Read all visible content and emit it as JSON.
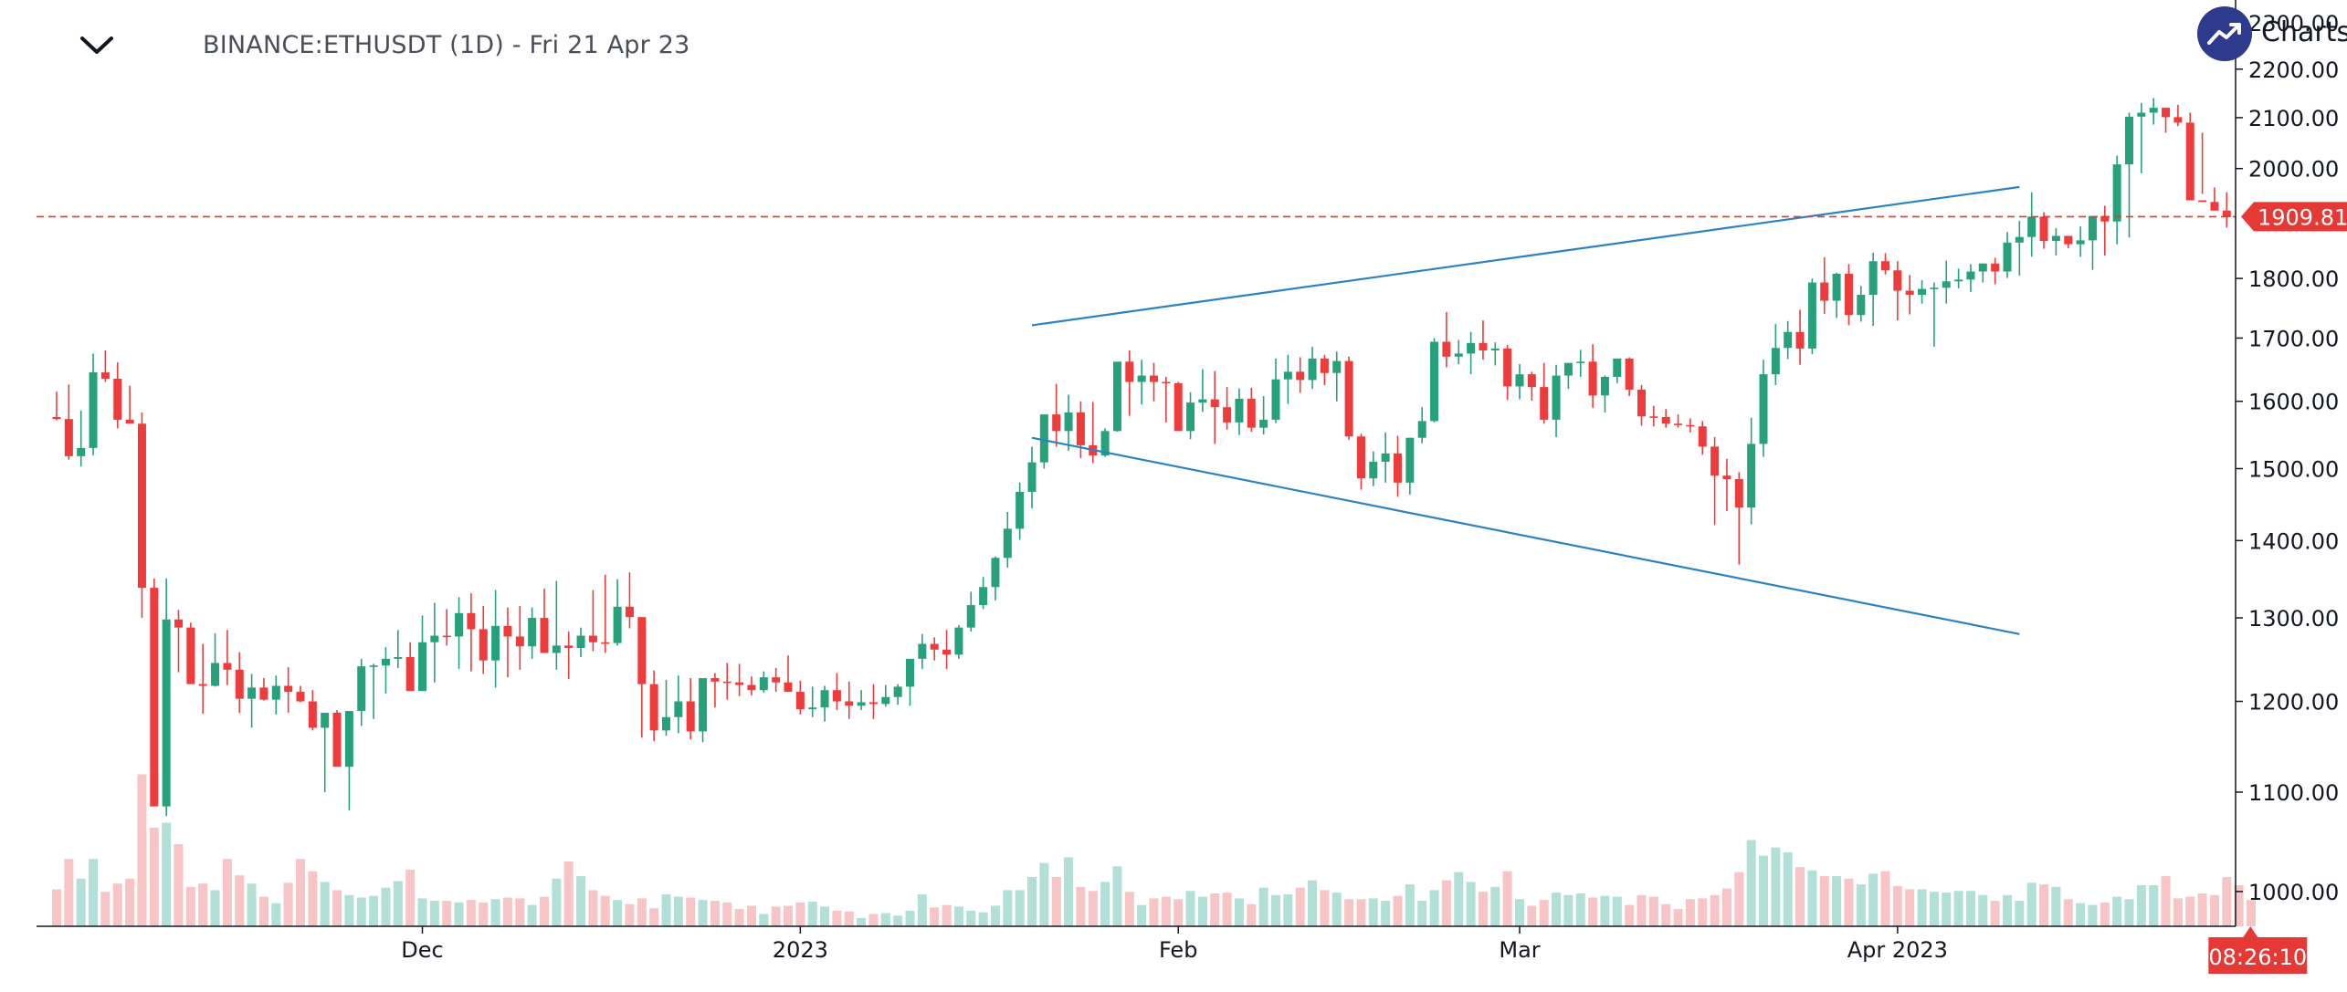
{
  "header": {
    "symbol": "BINANCE:ETHUSDT (1D) - Fri 21 Apr 23",
    "collapse_icon": "chevron-down-icon",
    "logo_text": "Charts p",
    "logo_icon": "trend-up-icon"
  },
  "chart_data": {
    "type": "candlestick",
    "title": "BINANCE:ETHUSDT (1D) - Fri 21 Apr 23",
    "x_tick_labels": [
      "Dec",
      "2023",
      "Feb",
      "Mar",
      "Apr 2023"
    ],
    "y_ticks": [
      1000,
      1100,
      1200,
      1300,
      1400,
      1500,
      1600,
      1700,
      1800,
      1900,
      2000,
      2100,
      2200,
      2300
    ],
    "y_tick_labels": [
      "1000.00",
      "1100.00",
      "1200.00",
      "1300.00",
      "1400.00",
      "1500.00",
      "1600.00",
      "1700.00",
      "1800.00",
      "2000.00",
      "2100.00",
      "2200.00",
      "2300.00"
    ],
    "y_scale": "log",
    "ylim": [
      980,
      2310
    ],
    "grid": false,
    "current_price": 1909.81,
    "current_price_label": "1909.81",
    "countdown_label": "08:26:10",
    "colors": {
      "up": "#26a17b",
      "down": "#ee3b3b",
      "up_volume": "#b2dfd6",
      "down_volume": "#f7c5c5",
      "trendline": "#2d82c0",
      "price_line": "#e53935"
    },
    "series": [
      {
        "kind": "ohlc",
        "start_date": "2022-11-01",
        "o": [
          1576,
          1573,
          1518,
          1530,
          1645,
          1635,
          1572,
          1566,
          1338,
          1085,
          1298,
          1288,
          1220,
          1218,
          1245,
          1237,
          1203,
          1216,
          1202,
          1218,
          1211,
          1200,
          1170,
          1187,
          1127,
          1189,
          1241,
          1242,
          1250,
          1252,
          1212,
          1270,
          1278,
          1277,
          1306,
          1286,
          1248,
          1290,
          1277,
          1265,
          1300,
          1257,
          1266,
          1263,
          1278,
          1270,
          1269,
          1314,
          1301,
          1220,
          1167,
          1182,
          1200,
          1166,
          1227,
          1223,
          1222,
          1219,
          1213,
          1228,
          1222,
          1211,
          1191,
          1193,
          1213,
          1200,
          1195,
          1199,
          1197,
          1205,
          1217,
          1250,
          1268,
          1261,
          1255,
          1288,
          1316,
          1339,
          1377,
          1416,
          1467,
          1509,
          1580,
          1555,
          1583,
          1534,
          1519,
          1555,
          1662,
          1630,
          1640,
          1630,
          1628,
          1555,
          1598,
          1603,
          1591,
          1568,
          1604,
          1560,
          1572,
          1634,
          1646,
          1633,
          1667,
          1644,
          1663,
          1547,
          1486,
          1510,
          1522,
          1480,
          1545,
          1570,
          1694,
          1670,
          1675,
          1692,
          1680,
          1683,
          1623,
          1642,
          1622,
          1572,
          1640,
          1660,
          1662,
          1609,
          1638,
          1667,
          1618,
          1577,
          1576,
          1566,
          1564,
          1562,
          1532,
          1490,
          1485,
          1445,
          1536,
          1642,
          1684,
          1710,
          1683,
          1793,
          1762,
          1808,
          1738,
          1772,
          1830,
          1814,
          1779,
          1772,
          1782,
          1784,
          1795,
          1798,
          1812,
          1826,
          1812,
          1863,
          1873,
          1910,
          1866,
          1875,
          1860,
          1867,
          1911,
          1901,
          2008,
          2102,
          2110,
          2120,
          2101,
          2090,
          1940,
          1937,
          1921
        ],
        "h": [
          1615,
          1626,
          1586,
          1675,
          1680,
          1661,
          1624,
          1583,
          1350,
          1350,
          1310,
          1294,
          1268,
          1281,
          1285,
          1258,
          1232,
          1227,
          1230,
          1240,
          1218,
          1213,
          1175,
          1190,
          1188,
          1250,
          1244,
          1264,
          1285,
          1270,
          1303,
          1319,
          1311,
          1326,
          1331,
          1315,
          1335,
          1313,
          1315,
          1313,
          1337,
          1347,
          1283,
          1288,
          1335,
          1355,
          1349,
          1358,
          1300,
          1236,
          1225,
          1230,
          1227,
          1212,
          1233,
          1245,
          1244,
          1229,
          1235,
          1239,
          1254,
          1224,
          1217,
          1218,
          1233,
          1223,
          1213,
          1220,
          1219,
          1220,
          1235,
          1280,
          1276,
          1285,
          1291,
          1333,
          1352,
          1379,
          1439,
          1480,
          1532,
          1546,
          1627,
          1610,
          1600,
          1599,
          1559,
          1653,
          1680,
          1665,
          1660,
          1638,
          1630,
          1614,
          1650,
          1647,
          1622,
          1620,
          1621,
          1608,
          1667,
          1673,
          1669,
          1686,
          1673,
          1678,
          1670,
          1551,
          1525,
          1553,
          1548,
          1545,
          1591,
          1700,
          1743,
          1697,
          1710,
          1729,
          1693,
          1689,
          1658,
          1646,
          1660,
          1657,
          1653,
          1681,
          1690,
          1640,
          1652,
          1669,
          1625,
          1593,
          1588,
          1580,
          1574,
          1570,
          1546,
          1514,
          1495,
          1575,
          1665,
          1723,
          1728,
          1747,
          1800,
          1837,
          1810,
          1825,
          1787,
          1845,
          1844,
          1830,
          1806,
          1797,
          1793,
          1831,
          1817,
          1825,
          1826,
          1836,
          1882,
          1902,
          1955,
          1918,
          1889,
          1873,
          1892,
          1910,
          1930,
          2025,
          2110,
          2130,
          2140,
          2120,
          2126,
          2110,
          1952,
          1964,
          1955
        ],
        "l": [
          1571,
          1513,
          1503,
          1519,
          1630,
          1559,
          1566,
          1300,
          1200,
          1075,
          1234,
          1255,
          1186,
          1217,
          1219,
          1187,
          1170,
          1201,
          1185,
          1187,
          1199,
          1167,
          1100,
          1128,
          1081,
          1172,
          1180,
          1209,
          1239,
          1214,
          1212,
          1222,
          1266,
          1238,
          1235,
          1232,
          1216,
          1228,
          1237,
          1250,
          1259,
          1237,
          1226,
          1252,
          1259,
          1257,
          1266,
          1287,
          1159,
          1155,
          1161,
          1164,
          1157,
          1154,
          1193,
          1202,
          1206,
          1207,
          1210,
          1211,
          1217,
          1185,
          1182,
          1177,
          1190,
          1180,
          1190,
          1180,
          1194,
          1196,
          1195,
          1238,
          1248,
          1238,
          1250,
          1283,
          1311,
          1322,
          1364,
          1401,
          1444,
          1500,
          1532,
          1526,
          1515,
          1508,
          1517,
          1554,
          1578,
          1595,
          1600,
          1568,
          1558,
          1543,
          1584,
          1536,
          1557,
          1549,
          1554,
          1550,
          1567,
          1596,
          1613,
          1619,
          1625,
          1600,
          1542,
          1470,
          1475,
          1480,
          1460,
          1463,
          1537,
          1568,
          1653,
          1658,
          1642,
          1665,
          1656,
          1602,
          1603,
          1601,
          1566,
          1546,
          1619,
          1638,
          1590,
          1583,
          1628,
          1608,
          1563,
          1562,
          1560,
          1560,
          1553,
          1520,
          1421,
          1440,
          1368,
          1422,
          1517,
          1625,
          1666,
          1657,
          1674,
          1740,
          1733,
          1721,
          1727,
          1720,
          1807,
          1729,
          1739,
          1757,
          1686,
          1757,
          1783,
          1777,
          1793,
          1790,
          1801,
          1805,
          1838,
          1852,
          1840,
          1853,
          1838,
          1815,
          1840,
          1860,
          1872,
          1991,
          2086,
          2070,
          2083,
          2060,
          2070,
          1921,
          1890,
          1890
        ],
        "c": [
          1573,
          1518,
          1530,
          1645,
          1635,
          1572,
          1566,
          1338,
          1085,
          1298,
          1288,
          1220,
          1218,
          1245,
          1237,
          1203,
          1216,
          1202,
          1218,
          1211,
          1200,
          1170,
          1187,
          1127,
          1189,
          1241,
          1242,
          1250,
          1252,
          1212,
          1270,
          1278,
          1277,
          1306,
          1286,
          1248,
          1290,
          1277,
          1265,
          1300,
          1257,
          1266,
          1263,
          1278,
          1270,
          1269,
          1314,
          1301,
          1220,
          1167,
          1182,
          1200,
          1166,
          1227,
          1223,
          1222,
          1219,
          1213,
          1228,
          1222,
          1211,
          1191,
          1193,
          1213,
          1200,
          1195,
          1199,
          1197,
          1205,
          1217,
          1250,
          1268,
          1261,
          1255,
          1288,
          1316,
          1339,
          1377,
          1416,
          1467,
          1509,
          1580,
          1555,
          1583,
          1534,
          1519,
          1555,
          1662,
          1630,
          1640,
          1630,
          1628,
          1555,
          1598,
          1603,
          1591,
          1568,
          1604,
          1560,
          1572,
          1634,
          1646,
          1633,
          1667,
          1644,
          1663,
          1547,
          1486,
          1510,
          1522,
          1480,
          1545,
          1570,
          1694,
          1670,
          1675,
          1692,
          1680,
          1683,
          1623,
          1642,
          1622,
          1572,
          1640,
          1660,
          1662,
          1609,
          1638,
          1667,
          1618,
          1577,
          1576,
          1566,
          1564,
          1562,
          1532,
          1490,
          1485,
          1445,
          1536,
          1642,
          1684,
          1710,
          1683,
          1793,
          1762,
          1808,
          1738,
          1772,
          1830,
          1814,
          1779,
          1772,
          1782,
          1784,
          1795,
          1798,
          1812,
          1826,
          1812,
          1863,
          1873,
          1910,
          1866,
          1875,
          1860,
          1867,
          1911,
          1901,
          2008,
          2102,
          2110,
          2120,
          2101,
          2090,
          1940,
          1937,
          1921,
          1909
        ],
        "volume": [
          0.45,
          0.82,
          0.58,
          0.82,
          0.42,
          0.52,
          0.58,
          1.85,
          1.2,
          1.26,
          1.0,
          0.48,
          0.52,
          0.44,
          0.82,
          0.62,
          0.52,
          0.36,
          0.28,
          0.53,
          0.82,
          0.67,
          0.54,
          0.44,
          0.38,
          0.35,
          0.37,
          0.47,
          0.55,
          0.69,
          0.34,
          0.31,
          0.31,
          0.29,
          0.32,
          0.29,
          0.33,
          0.35,
          0.34,
          0.26,
          0.36,
          0.58,
          0.79,
          0.61,
          0.44,
          0.37,
          0.32,
          0.27,
          0.34,
          0.22,
          0.39,
          0.36,
          0.35,
          0.32,
          0.31,
          0.29,
          0.21,
          0.25,
          0.15,
          0.24,
          0.25,
          0.29,
          0.3,
          0.24,
          0.19,
          0.18,
          0.1,
          0.15,
          0.16,
          0.13,
          0.19,
          0.39,
          0.23,
          0.26,
          0.24,
          0.19,
          0.17,
          0.25,
          0.44,
          0.44,
          0.6,
          0.77,
          0.6,
          0.84,
          0.48,
          0.43,
          0.54,
          0.73,
          0.42,
          0.26,
          0.34,
          0.36,
          0.33,
          0.43,
          0.36,
          0.4,
          0.41,
          0.34,
          0.27,
          0.47,
          0.38,
          0.39,
          0.47,
          0.56,
          0.44,
          0.41,
          0.33,
          0.33,
          0.34,
          0.31,
          0.37,
          0.51,
          0.31,
          0.44,
          0.56,
          0.66,
          0.54,
          0.42,
          0.48,
          0.67,
          0.33,
          0.25,
          0.32,
          0.41,
          0.38,
          0.4,
          0.35,
          0.37,
          0.36,
          0.26,
          0.38,
          0.36,
          0.27,
          0.21,
          0.33,
          0.34,
          0.38,
          0.46,
          0.66,
          1.05,
          0.86,
          0.96,
          0.9,
          0.72,
          0.68,
          0.61,
          0.61,
          0.58,
          0.51,
          0.64,
          0.67,
          0.49,
          0.45,
          0.45,
          0.42,
          0.41,
          0.43,
          0.43,
          0.38,
          0.31,
          0.38,
          0.31,
          0.53,
          0.51,
          0.48,
          0.33,
          0.28,
          0.26,
          0.29,
          0.36,
          0.33,
          0.5,
          0.5,
          0.61,
          0.34,
          0.36,
          0.4,
          0.38,
          0.6,
          0.5,
          0.32
        ]
      }
    ],
    "trendlines": [
      {
        "x": [
          "2023-01-20",
          "2023-04-11"
        ],
        "y": [
          1721,
          1965
        ]
      },
      {
        "x": [
          "2023-01-20",
          "2023-04-11"
        ],
        "y": [
          1545,
          1280
        ]
      }
    ]
  }
}
